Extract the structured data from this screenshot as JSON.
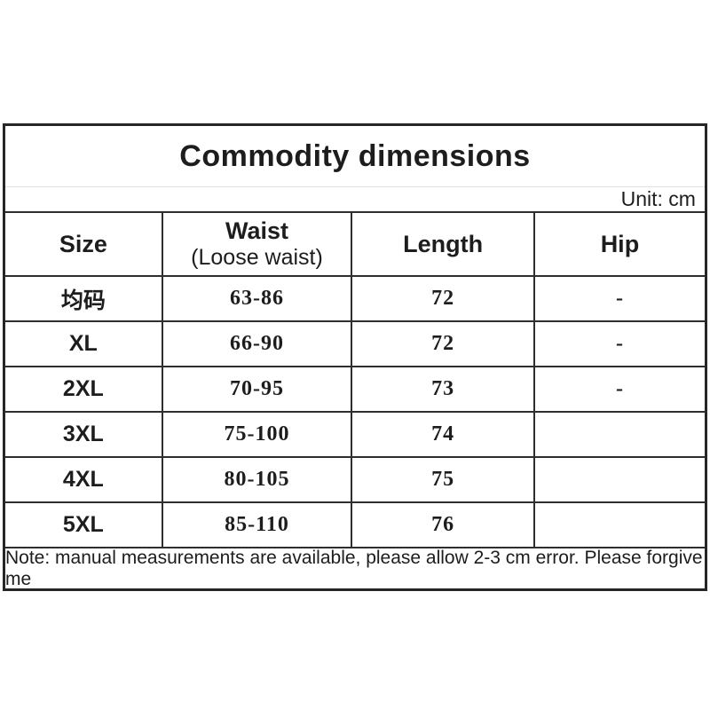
{
  "colors": {
    "text": "#1d1d1d",
    "border": "#2e2e2e",
    "light_divider": "#e2e2e2",
    "background": "#ffffff"
  },
  "table": {
    "title": "Commodity dimensions",
    "unit_label": "Unit: cm",
    "columns": {
      "size": "Size",
      "waist_line1": "Waist",
      "waist_line2": "(Loose waist)",
      "length": "Length",
      "hip": "Hip"
    },
    "rows": [
      {
        "size": "均码",
        "waist": "63-86",
        "length": "72",
        "hip": "-"
      },
      {
        "size": "XL",
        "waist": "66-90",
        "length": "72",
        "hip": "-"
      },
      {
        "size": "2XL",
        "waist": "70-95",
        "length": "73",
        "hip": "-"
      },
      {
        "size": "3XL",
        "waist": "75-100",
        "length": "74",
        "hip": ""
      },
      {
        "size": "4XL",
        "waist": "80-105",
        "length": "75",
        "hip": ""
      },
      {
        "size": "5XL",
        "waist": "85-110",
        "length": "76",
        "hip": ""
      }
    ],
    "note": "Note: manual measurements are available, please allow 2-3 cm error. Please forgive me"
  }
}
